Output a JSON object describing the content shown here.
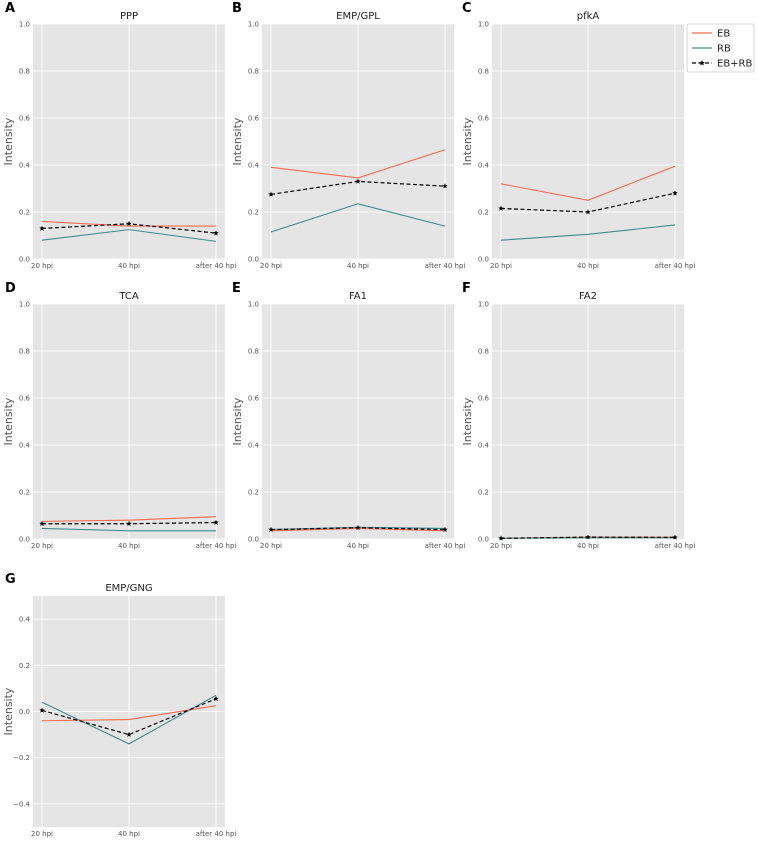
{
  "legend": {
    "items": [
      {
        "label": "EB",
        "color": "#fa6a4f",
        "style": "solid",
        "marker": "none"
      },
      {
        "label": "RB",
        "color": "#3f8a8c",
        "style": "solid",
        "marker": "none"
      },
      {
        "label": "EB+RB",
        "color": "#000000",
        "style": "dashed",
        "marker": "star"
      }
    ],
    "placement": "top-right"
  },
  "chart_data": [
    {
      "type": "line",
      "letter": "A",
      "title": "PPP",
      "ylabel": "Intensity",
      "categories": [
        "20 hpi",
        "40 hpi",
        "after 40 hpi"
      ],
      "ylim": [
        0,
        1.0
      ],
      "yticks": [
        "0.0",
        "0.2",
        "0.4",
        "0.6",
        "0.8",
        "1.0"
      ],
      "grid": true,
      "series": [
        {
          "name": "EB",
          "values": [
            0.16,
            0.14,
            0.14
          ]
        },
        {
          "name": "RB",
          "values": [
            0.08,
            0.125,
            0.075
          ]
        },
        {
          "name": "EB+RB",
          "values": [
            0.13,
            0.15,
            0.11
          ]
        }
      ]
    },
    {
      "type": "line",
      "letter": "B",
      "title": "EMP/GPL",
      "ylabel": "Intensity",
      "categories": [
        "20 hpi",
        "40 hpi",
        "after 40 hpi"
      ],
      "ylim": [
        0,
        1.0
      ],
      "yticks": [
        "0.0",
        "0.2",
        "0.4",
        "0.6",
        "0.8",
        "1.0"
      ],
      "grid": true,
      "series": [
        {
          "name": "EB",
          "values": [
            0.39,
            0.345,
            0.465
          ]
        },
        {
          "name": "RB",
          "values": [
            0.115,
            0.235,
            0.14
          ]
        },
        {
          "name": "EB+RB",
          "values": [
            0.275,
            0.33,
            0.31
          ]
        }
      ]
    },
    {
      "type": "line",
      "letter": "C",
      "title": "pfkA",
      "ylabel": "Intensity",
      "categories": [
        "20 hpi",
        "40 hpi",
        "after 40 hpi"
      ],
      "ylim": [
        0,
        1.0
      ],
      "yticks": [
        "0.0",
        "0.2",
        "0.4",
        "0.6",
        "0.8",
        "1.0"
      ],
      "grid": true,
      "series": [
        {
          "name": "EB",
          "values": [
            0.32,
            0.25,
            0.395
          ]
        },
        {
          "name": "RB",
          "values": [
            0.08,
            0.105,
            0.145
          ]
        },
        {
          "name": "EB+RB",
          "values": [
            0.215,
            0.2,
            0.28
          ]
        }
      ]
    },
    {
      "type": "line",
      "letter": "D",
      "title": "TCA",
      "ylabel": "Intensity",
      "categories": [
        "20 hpi",
        "40 hpi",
        "after 40 hpi"
      ],
      "ylim": [
        0,
        1.0
      ],
      "yticks": [
        "0.0",
        "0.2",
        "0.4",
        "0.6",
        "0.8",
        "1.0"
      ],
      "grid": true,
      "series": [
        {
          "name": "EB",
          "values": [
            0.075,
            0.08,
            0.095
          ]
        },
        {
          "name": "RB",
          "values": [
            0.045,
            0.035,
            0.035
          ]
        },
        {
          "name": "EB+RB",
          "values": [
            0.065,
            0.065,
            0.07
          ]
        }
      ]
    },
    {
      "type": "line",
      "letter": "E",
      "title": "FA1",
      "ylabel": "Intensity",
      "categories": [
        "20 hpi",
        "40 hpi",
        "after 40 hpi"
      ],
      "ylim": [
        0,
        1.0
      ],
      "yticks": [
        "0.0",
        "0.2",
        "0.4",
        "0.6",
        "0.8",
        "1.0"
      ],
      "grid": true,
      "series": [
        {
          "name": "EB",
          "values": [
            0.035,
            0.045,
            0.035
          ]
        },
        {
          "name": "RB",
          "values": [
            0.04,
            0.05,
            0.045
          ]
        },
        {
          "name": "EB+RB",
          "values": [
            0.04,
            0.048,
            0.04
          ]
        }
      ]
    },
    {
      "type": "line",
      "letter": "F",
      "title": "FA2",
      "ylabel": "Intensity",
      "categories": [
        "20 hpi",
        "40 hpi",
        "after 40 hpi"
      ],
      "ylim": [
        0,
        1.0
      ],
      "yticks": [
        "0.0",
        "0.2",
        "0.4",
        "0.6",
        "0.8",
        "1.0"
      ],
      "grid": true,
      "series": [
        {
          "name": "EB",
          "values": [
            0.003,
            0.008,
            0.008
          ]
        },
        {
          "name": "RB",
          "values": [
            0.003,
            0.005,
            0.005
          ]
        },
        {
          "name": "EB+RB",
          "values": [
            0.003,
            0.008,
            0.007
          ]
        }
      ]
    },
    {
      "type": "line",
      "letter": "G",
      "title": "EMP/GNG",
      "ylabel": "Intensity",
      "categories": [
        "20 hpi",
        "40 hpi",
        "after 40 hpi"
      ],
      "ylim": [
        -0.5,
        0.5
      ],
      "yticks": [
        "−0.4",
        "−0.2",
        "0.0",
        "0.2",
        "0.4"
      ],
      "ytick_values": [
        -0.4,
        -0.2,
        0.0,
        0.2,
        0.4
      ],
      "grid": true,
      "series": [
        {
          "name": "EB",
          "values": [
            -0.04,
            -0.035,
            0.025
          ]
        },
        {
          "name": "RB",
          "values": [
            0.04,
            -0.14,
            0.07
          ]
        },
        {
          "name": "EB+RB",
          "values": [
            0.005,
            -0.1,
            0.055
          ]
        }
      ]
    }
  ]
}
